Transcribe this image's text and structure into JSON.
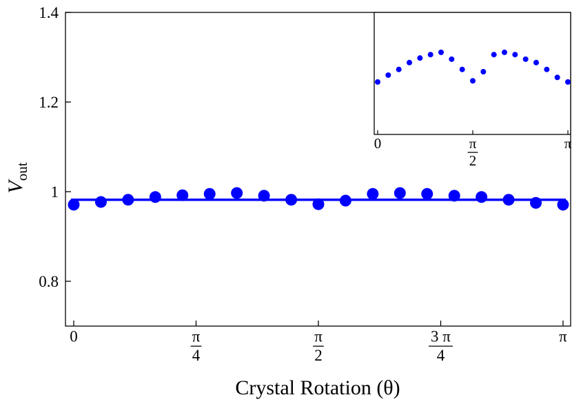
{
  "chart_data": {
    "type": "scatter",
    "xlabel": "Crystal Rotation (θ)",
    "ylabel": {
      "main": "V",
      "sub": "out"
    },
    "xlim": [
      -0.0531,
      3.1947
    ],
    "ylim": [
      0.7,
      1.4
    ],
    "xticks": [
      0,
      {
        "value": 0.7854,
        "label": "π/4"
      },
      {
        "value": 1.5708,
        "label": "π/2"
      },
      {
        "value": 2.3562,
        "label": "3 π/4"
      },
      {
        "value": 3.1416,
        "label": "π"
      }
    ],
    "yticks": [
      0.8,
      1,
      1.2,
      1.4
    ],
    "color": "#0000ff",
    "x": [
      0,
      0.1745,
      0.3491,
      0.5236,
      0.6981,
      0.8727,
      1.0472,
      1.2217,
      1.3963,
      1.5708,
      1.7453,
      1.9199,
      2.0944,
      2.2689,
      2.4435,
      2.618,
      2.7925,
      2.9671,
      3.1416
    ],
    "values": [
      0.971,
      0.977,
      0.982,
      0.988,
      0.992,
      0.995,
      0.997,
      0.991,
      0.982,
      0.972,
      0.98,
      0.995,
      0.997,
      0.995,
      0.991,
      0.988,
      0.982,
      0.975,
      0.971
    ],
    "fit": {
      "x": [
        -0.0177,
        3.1593
      ],
      "values": [
        0.982,
        0.982
      ]
    },
    "inset": {
      "xlim": [
        -0.057,
        3.198
      ],
      "ylim": [
        0.925,
        1.032
      ],
      "xticks": [
        0,
        {
          "value": 1.5708,
          "label": "π/2"
        },
        {
          "value": 3.1416,
          "label": "π"
        }
      ]
    }
  }
}
